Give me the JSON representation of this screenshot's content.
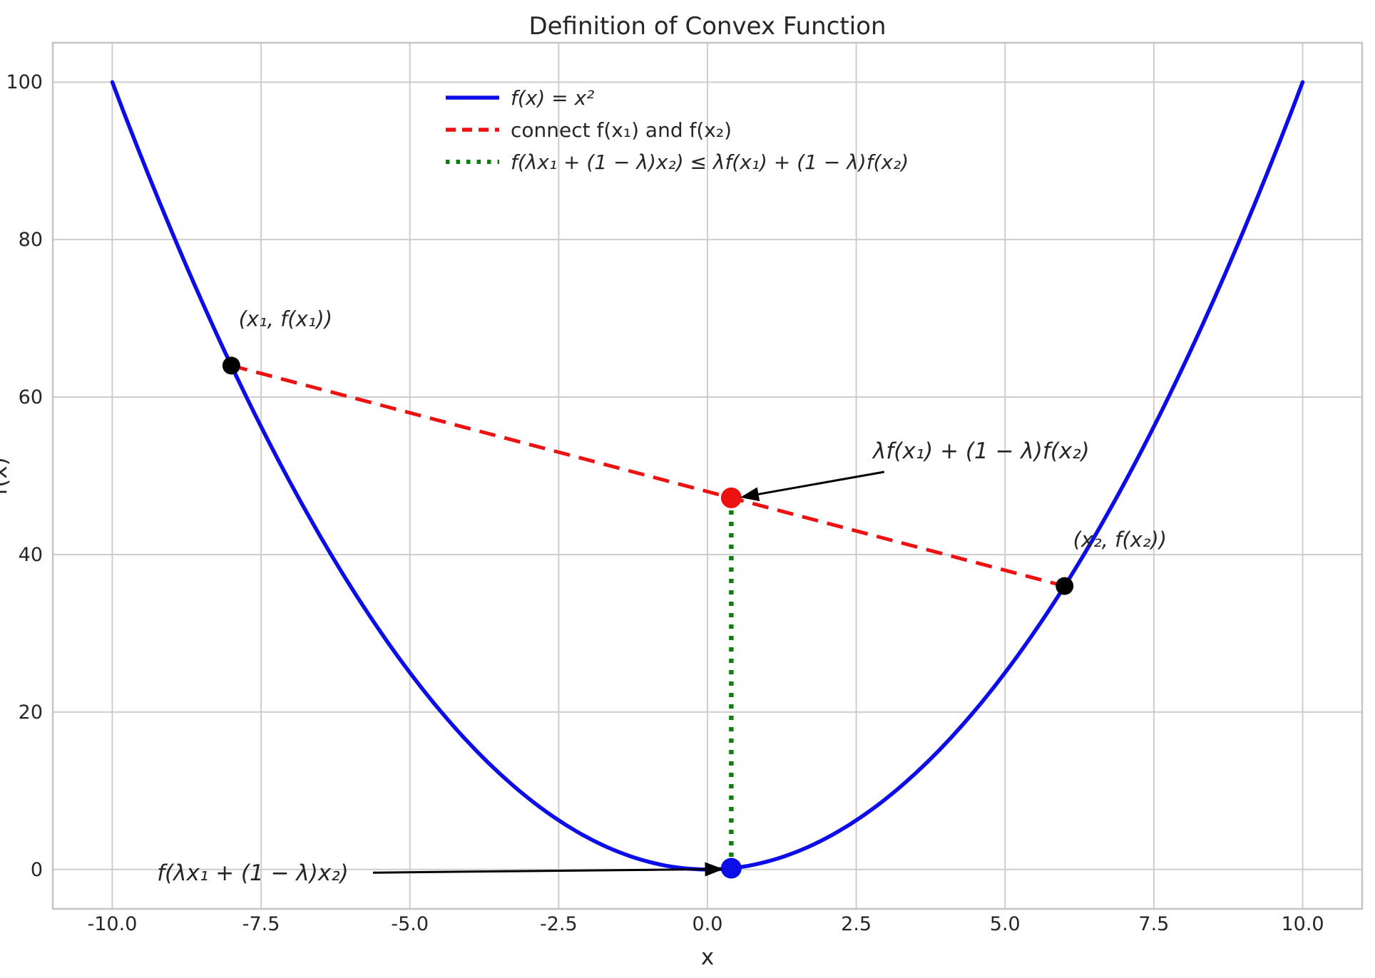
{
  "title": "Definition of Convex Function",
  "colors": {
    "curve_blue": "#0d0de8",
    "chord_red": "#ee1111",
    "inequality_green": "#0f7f0f",
    "grid": "#cdcdcd",
    "border": "#c4c4c4",
    "text": "#262626",
    "point_black": "#000000",
    "arrow_black": "#000000"
  },
  "chart_data": {
    "type": "line",
    "title": "Definition of Convex Function",
    "xlabel": "x",
    "ylabel": "f(x)",
    "xlim": [
      -11,
      11
    ],
    "ylim": [
      -5,
      105
    ],
    "xticks": [
      -10,
      -7.5,
      -5,
      -2.5,
      0,
      2.5,
      5,
      7.5,
      10
    ],
    "xtick_labels": [
      "-10.0",
      "-7.5",
      "-5.0",
      "-2.5",
      "0.0",
      "2.5",
      "5.0",
      "7.5",
      "10.0"
    ],
    "yticks": [
      0,
      20,
      40,
      60,
      80,
      100
    ],
    "ytick_labels": [
      "0",
      "20",
      "40",
      "60",
      "80",
      "100"
    ],
    "grid": true,
    "legend_position": "upper center frameless",
    "series": [
      {
        "name": "f(x) = x²",
        "kind": "function-curve",
        "fn": "x^2",
        "x_range": [
          -10,
          10
        ],
        "color_key": "curve_blue",
        "style": "solid",
        "width": 5.5,
        "legend_italic": true
      },
      {
        "name": "connect f(x₁) and f(x₂)",
        "kind": "segment",
        "points": [
          [
            -8,
            64
          ],
          [
            6,
            36
          ]
        ],
        "color_key": "chord_red",
        "style": "dashed",
        "width": 5,
        "legend_italic": false
      },
      {
        "name": "f(λx₁ + (1 − λ)x₂) ≤ λf(x₁) + (1 − λ)f(x₂)",
        "kind": "segment",
        "points": [
          [
            0.4,
            0.16
          ],
          [
            0.4,
            47.2
          ]
        ],
        "color_key": "inequality_green",
        "style": "dotted",
        "width": 6.5,
        "legend_italic": true
      }
    ],
    "points": [
      {
        "x": -8,
        "y": 64,
        "color_key": "point_black",
        "r": 12.5,
        "label": "(x₁, f(x₁))",
        "label_x": -7.09,
        "label_y": 69.9
      },
      {
        "x": 6,
        "y": 36,
        "color_key": "point_black",
        "r": 12.5,
        "label": "(x₂, f(x₂))",
        "label_x": 6.93,
        "label_y": 41.9
      },
      {
        "x": 0.4,
        "y": 47.2,
        "color_key": "chord_red",
        "r": 14.5,
        "label": ""
      },
      {
        "x": 0.4,
        "y": 0.16,
        "color_key": "curve_blue",
        "r": 14.5,
        "label": ""
      }
    ],
    "annotations": [
      {
        "text": "λf(x₁) + (1 − λ)f(x₂)",
        "color_key": "chord_red",
        "text_x": 4.6,
        "text_y": 53.2,
        "arrow_from_x": 2.97,
        "arrow_from_y": 50.5,
        "arrow_to_x": 0.55,
        "arrow_to_y": 47.25
      },
      {
        "text": "f(λx₁ + (1 − λ)x₂)",
        "color_key": "curve_blue",
        "text_x": -7.64,
        "text_y": -0.38,
        "arrow_from_x": -5.62,
        "arrow_from_y": -0.4,
        "arrow_to_x": 0.27,
        "arrow_to_y": 0.05
      }
    ]
  }
}
